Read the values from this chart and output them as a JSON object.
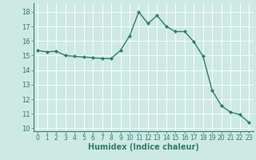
{
  "x": [
    0,
    1,
    2,
    3,
    4,
    5,
    6,
    7,
    8,
    9,
    10,
    11,
    12,
    13,
    14,
    15,
    16,
    17,
    18,
    19,
    20,
    21,
    22,
    23
  ],
  "y": [
    15.35,
    15.25,
    15.3,
    15.0,
    14.95,
    14.9,
    14.85,
    14.8,
    14.8,
    15.35,
    16.35,
    18.0,
    17.2,
    17.75,
    17.0,
    16.65,
    16.65,
    15.95,
    14.95,
    12.6,
    11.55,
    11.1,
    10.95,
    10.4
  ],
  "xlim": [
    -0.5,
    23.5
  ],
  "ylim": [
    9.8,
    18.6
  ],
  "yticks": [
    10,
    11,
    12,
    13,
    14,
    15,
    16,
    17,
    18
  ],
  "xticks": [
    0,
    1,
    2,
    3,
    4,
    5,
    6,
    7,
    8,
    9,
    10,
    11,
    12,
    13,
    14,
    15,
    16,
    17,
    18,
    19,
    20,
    21,
    22,
    23
  ],
  "xlabel": "Humidex (Indice chaleur)",
  "line_color": "#2e7d6e",
  "marker": "D",
  "marker_size": 2.0,
  "background_color": "#cce9e4",
  "grid_color": "#ffffff",
  "tick_color": "#2e7d6e",
  "label_color": "#2e7d6e",
  "xlabel_fontsize": 7,
  "ytick_fontsize": 6,
  "xtick_fontsize": 5.5,
  "linewidth": 1.0
}
